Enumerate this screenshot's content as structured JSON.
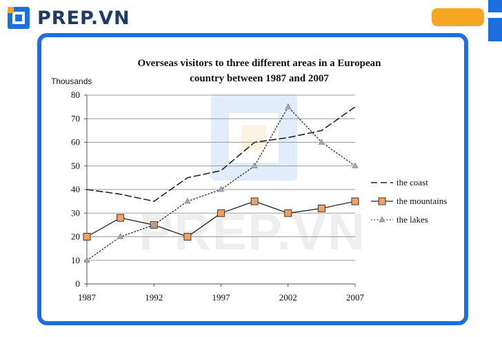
{
  "brand": {
    "name": "PREP.VN",
    "watermark": "PREP.VN",
    "color": "#1f3b63",
    "accent": "#f5a623",
    "blue": "#1d6fe0"
  },
  "chart_data": {
    "type": "line",
    "title_line1": "Overseas visitors to three different areas in a European",
    "title_line2": "country between 1987 and 2007",
    "ylabel": "Thousands",
    "ylim": [
      0,
      80
    ],
    "yticks": [
      "0",
      "10",
      "20",
      "30",
      "40",
      "50",
      "60",
      "70",
      "80"
    ],
    "xlim": [
      1987,
      2007
    ],
    "xticks": [
      "1987",
      "1992",
      "1997",
      "2002",
      "2007"
    ],
    "grid": true,
    "legend_position": "right",
    "series": [
      {
        "name": "the coast",
        "style": "dashed",
        "marker": "none",
        "x": [
          1987,
          1989.5,
          1992,
          1994.5,
          1997,
          1999.5,
          2002,
          2004.5,
          2007
        ],
        "values": [
          40,
          38,
          35,
          45,
          48,
          60,
          62,
          65,
          75
        ]
      },
      {
        "name": "the mountains",
        "style": "solid",
        "marker": "square",
        "marker_color": "#f0a060",
        "x": [
          1987,
          1989.5,
          1992,
          1994.5,
          1997,
          1999.5,
          2002,
          2004.5,
          2007
        ],
        "values": [
          20,
          28,
          25,
          20,
          30,
          35,
          30,
          32,
          35
        ]
      },
      {
        "name": "the lakes",
        "style": "dotted",
        "marker": "triangle",
        "marker_color": "#a8a8a8",
        "x": [
          1987,
          1989.5,
          1992,
          1994.5,
          1997,
          1999.5,
          2002,
          2004.5,
          2007
        ],
        "values": [
          10,
          20,
          25,
          35,
          40,
          50,
          75,
          60,
          50
        ]
      }
    ]
  }
}
